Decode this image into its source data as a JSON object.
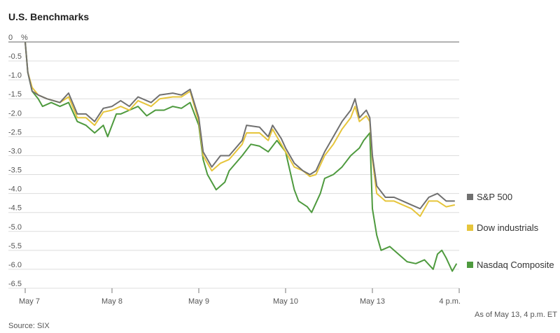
{
  "chart_data": {
    "type": "line",
    "title": "U.S. Benchmarks",
    "y_unit_label": "%",
    "ylim": [
      -6.5,
      0
    ],
    "yticks": [
      "0",
      "-0.5",
      "-1.0",
      "-1.5",
      "-2.0",
      "-2.5",
      "-3.0",
      "-3.5",
      "-4.0",
      "-4.5",
      "-5.0",
      "-5.5",
      "-6.0",
      "-6.5"
    ],
    "ytick_values": [
      0,
      -0.5,
      -1.0,
      -1.5,
      -2.0,
      -2.5,
      -3.0,
      -3.5,
      -4.0,
      -4.5,
      -5.0,
      -5.5,
      -6.0,
      -6.5
    ],
    "xlim": [
      0,
      5
    ],
    "xticks": [
      {
        "label": "May 7",
        "x": 0
      },
      {
        "label": "May 8",
        "x": 1
      },
      {
        "label": "May 9",
        "x": 2
      },
      {
        "label": "May 10",
        "x": 3
      },
      {
        "label": "May 13",
        "x": 4
      },
      {
        "label": "4 p.m.",
        "x": 5
      }
    ],
    "grid": true,
    "legend_placement": "right",
    "series": [
      {
        "name": "S&P 500",
        "color": "#707070",
        "points": [
          [
            0,
            0
          ],
          [
            0.03,
            -0.8
          ],
          [
            0.08,
            -1.3
          ],
          [
            0.15,
            -1.4
          ],
          [
            0.25,
            -1.5
          ],
          [
            0.4,
            -1.6
          ],
          [
            0.5,
            -1.35
          ],
          [
            0.6,
            -1.9
          ],
          [
            0.7,
            -1.9
          ],
          [
            0.8,
            -2.1
          ],
          [
            0.9,
            -1.75
          ],
          [
            1.0,
            -1.7
          ],
          [
            1.1,
            -1.55
          ],
          [
            1.2,
            -1.7
          ],
          [
            1.3,
            -1.45
          ],
          [
            1.45,
            -1.6
          ],
          [
            1.55,
            -1.4
          ],
          [
            1.7,
            -1.35
          ],
          [
            1.8,
            -1.4
          ],
          [
            1.9,
            -1.25
          ],
          [
            2.0,
            -2.0
          ],
          [
            2.05,
            -2.9
          ],
          [
            2.15,
            -3.3
          ],
          [
            2.25,
            -3.0
          ],
          [
            2.35,
            -3.0
          ],
          [
            2.5,
            -2.6
          ],
          [
            2.55,
            -2.2
          ],
          [
            2.7,
            -2.25
          ],
          [
            2.8,
            -2.5
          ],
          [
            2.85,
            -2.2
          ],
          [
            2.95,
            -2.55
          ],
          [
            3.0,
            -2.8
          ],
          [
            3.1,
            -3.2
          ],
          [
            3.2,
            -3.4
          ],
          [
            3.28,
            -3.5
          ],
          [
            3.35,
            -3.4
          ],
          [
            3.45,
            -2.9
          ],
          [
            3.55,
            -2.5
          ],
          [
            3.65,
            -2.1
          ],
          [
            3.75,
            -1.8
          ],
          [
            3.8,
            -1.5
          ],
          [
            3.85,
            -2.0
          ],
          [
            3.93,
            -1.8
          ],
          [
            3.97,
            -2.0
          ],
          [
            4.0,
            -3.0
          ],
          [
            4.05,
            -3.8
          ],
          [
            4.15,
            -4.1
          ],
          [
            4.25,
            -4.1
          ],
          [
            4.35,
            -4.2
          ],
          [
            4.45,
            -4.3
          ],
          [
            4.55,
            -4.4
          ],
          [
            4.65,
            -4.1
          ],
          [
            4.75,
            -4.0
          ],
          [
            4.85,
            -4.2
          ],
          [
            4.95,
            -4.2
          ]
        ]
      },
      {
        "name": "Dow industrials",
        "color": "#e6c53b",
        "points": [
          [
            0,
            0
          ],
          [
            0.03,
            -0.8
          ],
          [
            0.08,
            -1.2
          ],
          [
            0.15,
            -1.4
          ],
          [
            0.25,
            -1.5
          ],
          [
            0.4,
            -1.6
          ],
          [
            0.5,
            -1.45
          ],
          [
            0.6,
            -2.0
          ],
          [
            0.7,
            -2.0
          ],
          [
            0.8,
            -2.2
          ],
          [
            0.9,
            -1.85
          ],
          [
            1.0,
            -1.8
          ],
          [
            1.1,
            -1.7
          ],
          [
            1.2,
            -1.8
          ],
          [
            1.3,
            -1.55
          ],
          [
            1.45,
            -1.7
          ],
          [
            1.55,
            -1.5
          ],
          [
            1.7,
            -1.45
          ],
          [
            1.8,
            -1.45
          ],
          [
            1.9,
            -1.3
          ],
          [
            2.0,
            -2.1
          ],
          [
            2.05,
            -3.0
          ],
          [
            2.15,
            -3.4
          ],
          [
            2.25,
            -3.2
          ],
          [
            2.35,
            -3.1
          ],
          [
            2.5,
            -2.7
          ],
          [
            2.55,
            -2.4
          ],
          [
            2.7,
            -2.4
          ],
          [
            2.8,
            -2.6
          ],
          [
            2.85,
            -2.3
          ],
          [
            2.95,
            -2.7
          ],
          [
            3.0,
            -2.9
          ],
          [
            3.1,
            -3.3
          ],
          [
            3.2,
            -3.4
          ],
          [
            3.28,
            -3.55
          ],
          [
            3.35,
            -3.5
          ],
          [
            3.45,
            -3.0
          ],
          [
            3.55,
            -2.7
          ],
          [
            3.65,
            -2.3
          ],
          [
            3.75,
            -2.0
          ],
          [
            3.8,
            -1.7
          ],
          [
            3.85,
            -2.1
          ],
          [
            3.93,
            -1.95
          ],
          [
            3.97,
            -2.1
          ],
          [
            4.0,
            -3.1
          ],
          [
            4.05,
            -4.0
          ],
          [
            4.15,
            -4.2
          ],
          [
            4.25,
            -4.2
          ],
          [
            4.35,
            -4.3
          ],
          [
            4.45,
            -4.4
          ],
          [
            4.55,
            -4.6
          ],
          [
            4.65,
            -4.2
          ],
          [
            4.75,
            -4.2
          ],
          [
            4.85,
            -4.35
          ],
          [
            4.95,
            -4.3
          ]
        ]
      },
      {
        "name": "Nasdaq Composite",
        "color": "#4e9a3e",
        "points": [
          [
            0,
            0
          ],
          [
            0.03,
            -0.8
          ],
          [
            0.08,
            -1.3
          ],
          [
            0.15,
            -1.5
          ],
          [
            0.2,
            -1.7
          ],
          [
            0.3,
            -1.6
          ],
          [
            0.4,
            -1.7
          ],
          [
            0.5,
            -1.6
          ],
          [
            0.6,
            -2.1
          ],
          [
            0.7,
            -2.2
          ],
          [
            0.8,
            -2.4
          ],
          [
            0.9,
            -2.2
          ],
          [
            0.95,
            -2.5
          ],
          [
            1.0,
            -2.2
          ],
          [
            1.05,
            -1.9
          ],
          [
            1.1,
            -1.9
          ],
          [
            1.2,
            -1.8
          ],
          [
            1.3,
            -1.7
          ],
          [
            1.4,
            -1.95
          ],
          [
            1.5,
            -1.8
          ],
          [
            1.6,
            -1.8
          ],
          [
            1.7,
            -1.7
          ],
          [
            1.8,
            -1.75
          ],
          [
            1.9,
            -1.6
          ],
          [
            2.0,
            -2.2
          ],
          [
            2.05,
            -3.1
          ],
          [
            2.1,
            -3.5
          ],
          [
            2.2,
            -3.9
          ],
          [
            2.3,
            -3.7
          ],
          [
            2.35,
            -3.4
          ],
          [
            2.5,
            -3.0
          ],
          [
            2.6,
            -2.7
          ],
          [
            2.7,
            -2.75
          ],
          [
            2.8,
            -2.9
          ],
          [
            2.9,
            -2.6
          ],
          [
            3.0,
            -2.9
          ],
          [
            3.05,
            -3.4
          ],
          [
            3.1,
            -3.9
          ],
          [
            3.15,
            -4.2
          ],
          [
            3.25,
            -4.35
          ],
          [
            3.3,
            -4.5
          ],
          [
            3.4,
            -4.0
          ],
          [
            3.45,
            -3.6
          ],
          [
            3.55,
            -3.5
          ],
          [
            3.65,
            -3.3
          ],
          [
            3.75,
            -3.0
          ],
          [
            3.85,
            -2.8
          ],
          [
            3.9,
            -2.6
          ],
          [
            3.97,
            -2.4
          ],
          [
            4.0,
            -4.4
          ],
          [
            4.05,
            -5.1
          ],
          [
            4.1,
            -5.5
          ],
          [
            4.2,
            -5.4
          ],
          [
            4.3,
            -5.6
          ],
          [
            4.4,
            -5.8
          ],
          [
            4.5,
            -5.85
          ],
          [
            4.6,
            -5.75
          ],
          [
            4.7,
            -6.0
          ],
          [
            4.75,
            -5.6
          ],
          [
            4.8,
            -5.5
          ],
          [
            4.85,
            -5.7
          ],
          [
            4.92,
            -6.05
          ],
          [
            4.97,
            -5.85
          ]
        ]
      }
    ],
    "note": "As of May 13, 4 p.m. ET",
    "source": "Source: SIX"
  }
}
